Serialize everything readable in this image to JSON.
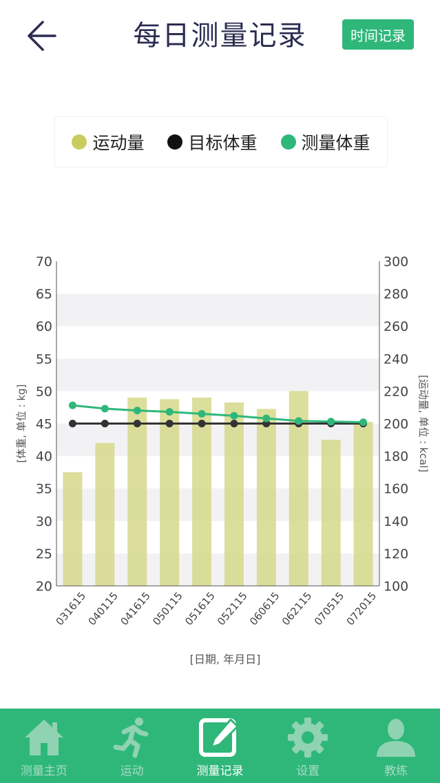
{
  "header": {
    "title": "每日测量记录",
    "time_button": "时间记录"
  },
  "legend": [
    {
      "label": "运动量",
      "color": "#c9cd5e"
    },
    {
      "label": "目标体重",
      "color": "#111111"
    },
    {
      "label": "测量体重",
      "color": "#2fb77a"
    }
  ],
  "chart_data": {
    "type": "bar+line",
    "categories": [
      "031615",
      "040115",
      "041615",
      "050115",
      "051615",
      "052115",
      "060615",
      "062115",
      "070515",
      "072015"
    ],
    "series": [
      {
        "name": "运动量",
        "type": "bar",
        "axis": "right",
        "values": [
          170,
          188,
          216,
          215,
          216,
          213,
          209,
          220,
          190,
          201
        ]
      },
      {
        "name": "目标体重",
        "type": "line",
        "axis": "left",
        "values": [
          45,
          45,
          45,
          45,
          45,
          45,
          45,
          45,
          45,
          45
        ]
      },
      {
        "name": "测量体重",
        "type": "line",
        "axis": "left",
        "values": [
          47.8,
          47.3,
          47.0,
          46.8,
          46.5,
          46.2,
          45.8,
          45.4,
          45.3,
          45.2
        ]
      }
    ],
    "ylabel_left": "[体重, 单位 : kg]",
    "ylabel_right": "[运动量, 单位 : kcal]",
    "xlabel": "[日期, 年月日]",
    "ylim_left": [
      20,
      70
    ],
    "ylim_right": [
      100,
      300
    ],
    "yticks_left": [
      20,
      25,
      30,
      35,
      40,
      45,
      50,
      55,
      60,
      65,
      70
    ],
    "yticks_right": [
      100,
      120,
      140,
      160,
      180,
      200,
      220,
      240,
      260,
      280,
      300
    ],
    "colors": {
      "bar": "#d6d88a",
      "target": "#333333",
      "measured": "#2fb77a",
      "band": "#f2f2f4"
    }
  },
  "nav": {
    "items": [
      {
        "label": "测量主页",
        "icon": "home-icon",
        "active": false
      },
      {
        "label": "运动",
        "icon": "runner-icon",
        "active": false
      },
      {
        "label": "测量记录",
        "icon": "edit-record-icon",
        "active": true
      },
      {
        "label": "设置",
        "icon": "gear-icon",
        "active": false
      },
      {
        "label": "教练",
        "icon": "user-icon",
        "active": false
      }
    ]
  },
  "colors": {
    "accent": "#2fb77a",
    "title": "#2b2b52"
  }
}
